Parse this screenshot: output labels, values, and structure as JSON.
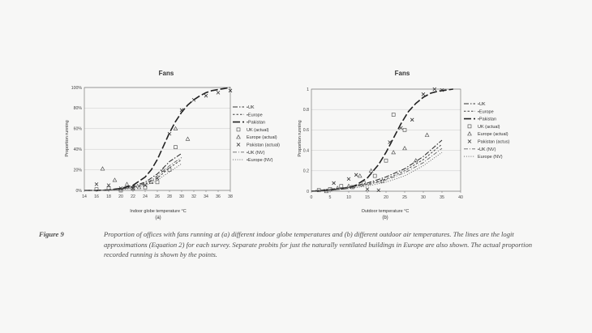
{
  "caption": {
    "figure_number": "Figure 9",
    "line1": "Proportion of offices with fans running at (a) different indoor globe temperatures and (b) different outdoor air temperatures. The lines are the logit",
    "line2": "approximations (Equation 2) for each survey. Separate probits for just the naturally ventilated buildings in Europe are also shown. The actual proportion",
    "line3": "recorded running is shown by the points."
  },
  "chart_data": [
    {
      "type": "line",
      "title": "Fans",
      "sublabel": "(a)",
      "xlabel": "Indoor globe temperature °C",
      "ylabel": "Proportion running",
      "xlim": [
        14,
        38
      ],
      "ylim": [
        0,
        1
      ],
      "x_ticks": [
        "14",
        "16",
        "18",
        "20",
        "22",
        "24",
        "26",
        "28",
        "30",
        "32",
        "34",
        "36",
        "38"
      ],
      "y_ticks": [
        "0%",
        "20%",
        "40%",
        "60%",
        "80%",
        "100%"
      ],
      "grid": "horizontal",
      "legend_position": "right",
      "legend": [
        "•UK",
        "•Europe",
        "•Pakistan",
        "UK (actual)",
        "Europe (actual)",
        "Pakistan (actual)",
        "•UK (NV)",
        "•Europe (NV)"
      ],
      "series": [
        {
          "name": "•UK",
          "style": "dashdot",
          "x": [
            14,
            16,
            18,
            20,
            22,
            24,
            25,
            26,
            27,
            28,
            29,
            30
          ],
          "y": [
            0,
            0,
            0.005,
            0.015,
            0.04,
            0.08,
            0.12,
            0.16,
            0.22,
            0.28,
            0.32,
            0.36
          ]
        },
        {
          "name": "•Europe",
          "style": "shortdash",
          "x": [
            14,
            16,
            18,
            20,
            22,
            24,
            25,
            26,
            27,
            28,
            29,
            30
          ],
          "y": [
            0,
            0,
            0.003,
            0.01,
            0.03,
            0.06,
            0.09,
            0.12,
            0.17,
            0.22,
            0.26,
            0.3
          ]
        },
        {
          "name": "•Pakistan",
          "style": "longdash",
          "x": [
            14,
            16,
            18,
            20,
            22,
            24,
            25,
            26,
            27,
            28,
            29,
            30,
            31,
            32,
            33,
            34,
            35,
            36,
            37,
            38
          ],
          "y": [
            0,
            0,
            0.005,
            0.02,
            0.05,
            0.13,
            0.2,
            0.3,
            0.43,
            0.56,
            0.67,
            0.76,
            0.83,
            0.88,
            0.92,
            0.95,
            0.97,
            0.98,
            0.99,
            1.0
          ]
        },
        {
          "name": "•UK (NV)",
          "style": "dashdot-light",
          "x": [
            14,
            16,
            18,
            20,
            22,
            24,
            25,
            26,
            27,
            28,
            29,
            30
          ],
          "y": [
            0,
            0,
            0.005,
            0.012,
            0.03,
            0.07,
            0.1,
            0.14,
            0.19,
            0.24,
            0.28,
            0.32
          ]
        },
        {
          "name": "•Europe (NV)",
          "style": "dotted",
          "x": [
            14,
            16,
            18,
            20,
            22,
            24,
            25,
            26,
            27,
            28,
            29,
            30
          ],
          "y": [
            0,
            0,
            0.003,
            0.008,
            0.02,
            0.05,
            0.07,
            0.1,
            0.14,
            0.18,
            0.22,
            0.26
          ]
        }
      ],
      "points": [
        {
          "name": "UK (actual)",
          "marker": "square",
          "x": [
            16,
            18,
            20,
            22,
            24,
            26,
            28,
            29
          ],
          "y": [
            0.01,
            0.02,
            0.0,
            0.02,
            0.03,
            0.08,
            0.2,
            0.42
          ]
        },
        {
          "name": "Europe (actual)",
          "marker": "triangle",
          "x": [
            17,
            19,
            21,
            23,
            25,
            27,
            29,
            31
          ],
          "y": [
            0.21,
            0.1,
            0.06,
            0.03,
            0.08,
            0.2,
            0.6,
            0.5
          ]
        },
        {
          "name": "Pakistan (actual)",
          "marker": "x",
          "x": [
            16,
            18,
            20,
            22,
            24,
            26,
            28,
            30,
            32,
            34,
            36,
            38
          ],
          "y": [
            0.06,
            0.05,
            0.02,
            0.02,
            0.05,
            0.12,
            0.55,
            0.78,
            0.88,
            0.92,
            0.95,
            0.97
          ]
        }
      ]
    },
    {
      "type": "line",
      "title": "Fans",
      "sublabel": "(b)",
      "xlabel": "Outdoor temperature °C",
      "ylabel": "Proportion running",
      "xlim": [
        0,
        40
      ],
      "ylim": [
        0,
        1
      ],
      "x_ticks": [
        "0",
        "5",
        "10",
        "15",
        "20",
        "25",
        "30",
        "35",
        "40"
      ],
      "y_ticks": [
        "0",
        "0.2",
        "0.4",
        "0.6",
        "0.8",
        "1"
      ],
      "grid": "horizontal",
      "legend_position": "right",
      "legend": [
        "•UK",
        "•Europe",
        "•Pakistan",
        "UK (actual)",
        "Europe (actual)",
        "Pakistan (actus)",
        "•UK (NV)",
        "Europe (NV)"
      ],
      "series": [
        {
          "name": "•UK",
          "style": "dashdot",
          "x": [
            0,
            5,
            10,
            15,
            20,
            25,
            30,
            35
          ],
          "y": [
            0.0,
            0.02,
            0.04,
            0.08,
            0.14,
            0.22,
            0.34,
            0.5
          ]
        },
        {
          "name": "•Europe",
          "style": "shortdash",
          "x": [
            0,
            5,
            10,
            15,
            20,
            25,
            30,
            35
          ],
          "y": [
            0.0,
            0.02,
            0.04,
            0.07,
            0.12,
            0.2,
            0.31,
            0.46
          ]
        },
        {
          "name": "•Pakistan",
          "style": "longdash",
          "x": [
            0,
            5,
            10,
            12,
            15,
            18,
            20,
            22,
            24,
            26,
            28,
            30,
            32,
            34,
            36,
            38
          ],
          "y": [
            0.0,
            0.01,
            0.03,
            0.06,
            0.13,
            0.26,
            0.38,
            0.52,
            0.66,
            0.78,
            0.86,
            0.92,
            0.96,
            0.98,
            0.99,
            1.0
          ]
        },
        {
          "name": "•UK (NV)",
          "style": "dashdot-light",
          "x": [
            0,
            5,
            10,
            15,
            20,
            25,
            30,
            35
          ],
          "y": [
            0.0,
            0.015,
            0.03,
            0.06,
            0.11,
            0.18,
            0.28,
            0.42
          ]
        },
        {
          "name": "Europe (NV)",
          "style": "dotted",
          "x": [
            0,
            5,
            10,
            15,
            20,
            25,
            30,
            35
          ],
          "y": [
            0.0,
            0.01,
            0.025,
            0.05,
            0.09,
            0.15,
            0.25,
            0.38
          ]
        }
      ],
      "points": [
        {
          "name": "UK (actual)",
          "marker": "square",
          "x": [
            2,
            5,
            8,
            11,
            14,
            17,
            20,
            22,
            25
          ],
          "y": [
            0.01,
            0.02,
            0.05,
            0.04,
            0.08,
            0.15,
            0.3,
            0.75,
            0.6
          ]
        },
        {
          "name": "Europe (actual)",
          "marker": "triangle",
          "x": [
            4,
            7,
            10,
            13,
            16,
            19,
            22,
            25,
            28,
            31
          ],
          "y": [
            0.0,
            0.03,
            0.05,
            0.15,
            0.2,
            0.1,
            0.38,
            0.42,
            0.3,
            0.55
          ]
        },
        {
          "name": "Pakistan (actus)",
          "marker": "x",
          "x": [
            6,
            10,
            12,
            15,
            18,
            21,
            24,
            27,
            30,
            33,
            35
          ],
          "y": [
            0.08,
            0.12,
            0.16,
            0.02,
            0.01,
            0.48,
            0.62,
            0.7,
            0.95,
            1.0,
            0.99
          ]
        }
      ]
    }
  ]
}
